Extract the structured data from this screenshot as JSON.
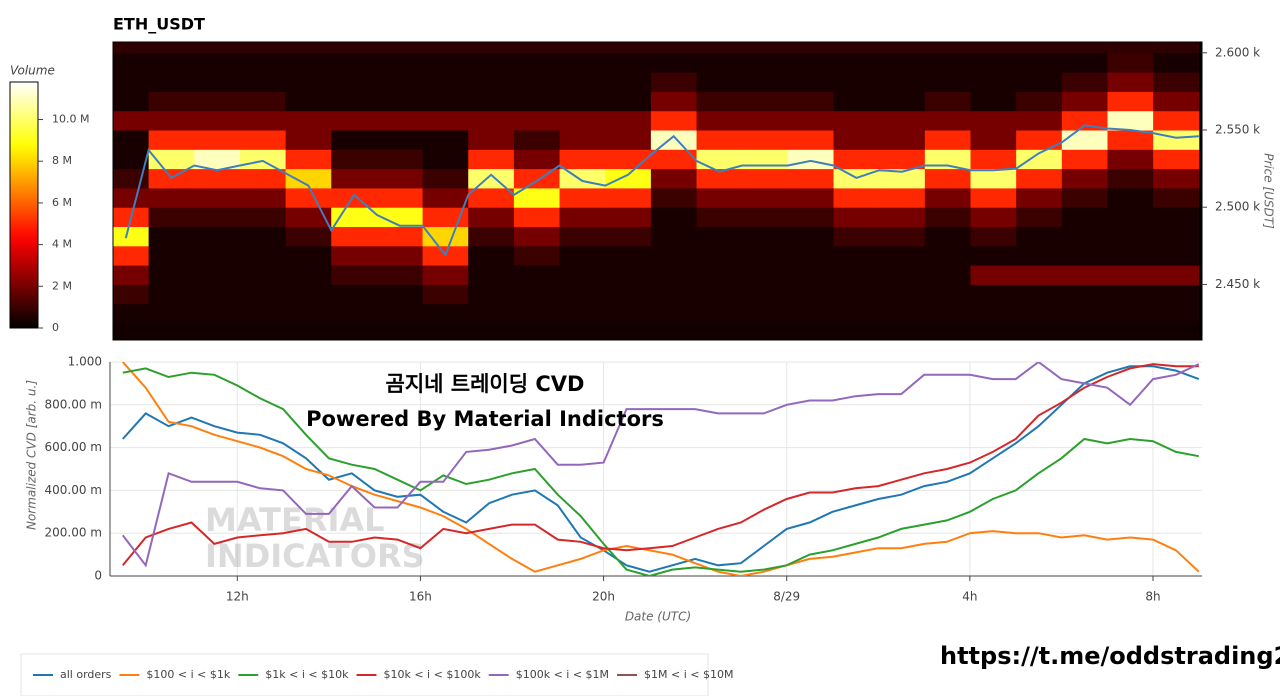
{
  "chart_data": [
    {
      "type": "heatmap",
      "title": "ETH_USDT",
      "y_label": "Price [USDT]",
      "colorbar_label": "Volume",
      "xlim": [
        9.22,
        33.07
      ],
      "ylim": [
        2414,
        2607
      ],
      "yticks": [
        {
          "value": 2450,
          "label": "2.450 k"
        },
        {
          "value": 2500,
          "label": "2.500 k"
        },
        {
          "value": 2550,
          "label": "2.550 k"
        },
        {
          "value": 2600,
          "label": "2.600 k"
        }
      ],
      "zlim": [
        0,
        11800000
      ],
      "zticks": [
        0,
        {
          "value": 2000000,
          "label": "2 M"
        },
        {
          "value": 4000000,
          "label": "4 M"
        },
        {
          "value": 6000000,
          "label": "6 M"
        },
        {
          "value": 8000000,
          "label": "8 M"
        },
        {
          "value": 10000000,
          "label": "10.0 M"
        }
      ],
      "x_bins": [
        9,
        10,
        11,
        12,
        13,
        14,
        15,
        16,
        17,
        18,
        19,
        20,
        21,
        22,
        23,
        24,
        25,
        26,
        27,
        28,
        29,
        30,
        31,
        32,
        33
      ],
      "y_bins": [
        2412.5,
        2425,
        2437.5,
        2450,
        2462.5,
        2475,
        2487.5,
        2500,
        2512.5,
        2525,
        2537.5,
        2550,
        2562.5,
        2575,
        2587.5,
        2600,
        2612.5
      ],
      "z": [
        [
          300000.0,
          300000.0,
          300000.0,
          300000.0,
          300000.0,
          300000.0,
          300000.0,
          300000.0,
          300000.0,
          300000.0,
          300000.0,
          300000.0,
          300000.0,
          300000.0,
          300000.0,
          300000.0,
          300000.0,
          300000.0,
          300000.0,
          300000.0,
          300000.0,
          300000.0,
          300000.0,
          300000.0
        ],
        [
          400000.0,
          400000.0,
          400000.0,
          400000.0,
          400000.0,
          400000.0,
          400000.0,
          400000.0,
          400000.0,
          400000.0,
          400000.0,
          400000.0,
          400000.0,
          400000.0,
          400000.0,
          400000.0,
          400000.0,
          400000.0,
          400000.0,
          400000.0,
          400000.0,
          400000.0,
          400000.0,
          400000.0
        ],
        [
          1000000.0,
          400000.0,
          400000.0,
          400000.0,
          400000.0,
          400000.0,
          400000.0,
          1000000.0,
          400000.0,
          400000.0,
          400000.0,
          400000.0,
          400000.0,
          400000.0,
          400000.0,
          400000.0,
          400000.0,
          400000.0,
          400000.0,
          400000.0,
          400000.0,
          400000.0,
          400000.0,
          400000.0
        ],
        [
          2000000.0,
          400000.0,
          400000.0,
          400000.0,
          400000.0,
          1000000.0,
          1000000.0,
          2000000.0,
          400000.0,
          400000.0,
          400000.0,
          400000.0,
          400000.0,
          400000.0,
          400000.0,
          400000.0,
          400000.0,
          400000.0,
          400000.0,
          2000000.0,
          2000000.0,
          2000000.0,
          2000000.0,
          2000000.0
        ],
        [
          5000000.0,
          400000.0,
          400000.0,
          400000.0,
          400000.0,
          2000000.0,
          2000000.0,
          5000000.0,
          400000.0,
          1000000.0,
          400000.0,
          400000.0,
          400000.0,
          400000.0,
          400000.0,
          400000.0,
          400000.0,
          400000.0,
          400000.0,
          400000.0,
          400000.0,
          400000.0,
          400000.0,
          400000.0
        ],
        [
          9000000.0,
          400000.0,
          400000.0,
          400000.0,
          1000000.0,
          5000000.0,
          5000000.0,
          8000000.0,
          1000000.0,
          2000000.0,
          1000000.0,
          1000000.0,
          400000.0,
          400000.0,
          400000.0,
          400000.0,
          1000000.0,
          1000000.0,
          400000.0,
          1000000.0,
          400000.0,
          400000.0,
          400000.0,
          400000.0
        ],
        [
          5000000.0,
          1000000.0,
          1000000.0,
          1000000.0,
          2000000.0,
          9000000.0,
          9000000.0,
          5000000.0,
          2000000.0,
          5000000.0,
          2000000.0,
          2000000.0,
          400000.0,
          1000000.0,
          1000000.0,
          1000000.0,
          2000000.0,
          2000000.0,
          1000000.0,
          2000000.0,
          1000000.0,
          400000.0,
          400000.0,
          400000.0
        ],
        [
          2000000.0,
          2000000.0,
          2000000.0,
          2000000.0,
          5000000.0,
          5000000.0,
          5000000.0,
          2000000.0,
          5000000.0,
          9000000.0,
          5000000.0,
          5000000.0,
          1000000.0,
          2000000.0,
          2000000.0,
          2000000.0,
          5000000.0,
          5000000.0,
          2000000.0,
          5000000.0,
          2000000.0,
          1000000.0,
          400000.0,
          1000000.0
        ],
        [
          1000000.0,
          5000000.0,
          5000000.0,
          5000000.0,
          8000000.0,
          2000000.0,
          2000000.0,
          1000000.0,
          10000000.0,
          5000000.0,
          10000000.0,
          9000000.0,
          2000000.0,
          5000000.0,
          5000000.0,
          5000000.0,
          10000000.0,
          10000000.0,
          5000000.0,
          10000000.0,
          5000000.0,
          2000000.0,
          1000000.0,
          2000000.0
        ],
        [
          400000.0,
          10000000.0,
          11000000.0,
          10000000.0,
          5000000.0,
          1000000.0,
          1000000.0,
          400000.0,
          5000000.0,
          2000000.0,
          5000000.0,
          5000000.0,
          5000000.0,
          10000000.0,
          10000000.0,
          11000000.0,
          5000000.0,
          5000000.0,
          10000000.0,
          5000000.0,
          10000000.0,
          5000000.0,
          2000000.0,
          5000000.0
        ],
        [
          400000.0,
          5000000.0,
          5000000.0,
          5000000.0,
          2000000.0,
          400000.0,
          400000.0,
          400000.0,
          2000000.0,
          1000000.0,
          2000000.0,
          2000000.0,
          11000000.0,
          5000000.0,
          5000000.0,
          5000000.0,
          2000000.0,
          2000000.0,
          5000000.0,
          2000000.0,
          5000000.0,
          11000000.0,
          5000000.0,
          10000000.0
        ],
        [
          2000000.0,
          2000000.0,
          2000000.0,
          2000000.0,
          2000000.0,
          2000000.0,
          2000000.0,
          2000000.0,
          2000000.0,
          2000000.0,
          2000000.0,
          2000000.0,
          5000000.0,
          2000000.0,
          2000000.0,
          2000000.0,
          2000000.0,
          2000000.0,
          2000000.0,
          2000000.0,
          2000000.0,
          5000000.0,
          11000000.0,
          5000000.0
        ],
        [
          400000.0,
          1000000.0,
          1000000.0,
          1000000.0,
          400000.0,
          400000.0,
          400000.0,
          400000.0,
          400000.0,
          400000.0,
          400000.0,
          400000.0,
          2000000.0,
          1000000.0,
          1000000.0,
          1000000.0,
          400000.0,
          400000.0,
          1000000.0,
          400000.0,
          1000000.0,
          2000000.0,
          5000000.0,
          2000000.0
        ],
        [
          400000.0,
          400000.0,
          400000.0,
          400000.0,
          400000.0,
          400000.0,
          400000.0,
          400000.0,
          400000.0,
          400000.0,
          400000.0,
          400000.0,
          1000000.0,
          400000.0,
          400000.0,
          400000.0,
          400000.0,
          400000.0,
          400000.0,
          400000.0,
          400000.0,
          1000000.0,
          2000000.0,
          1000000.0
        ],
        [
          400000.0,
          400000.0,
          400000.0,
          400000.0,
          400000.0,
          400000.0,
          400000.0,
          400000.0,
          400000.0,
          400000.0,
          400000.0,
          400000.0,
          400000.0,
          400000.0,
          400000.0,
          400000.0,
          400000.0,
          400000.0,
          400000.0,
          400000.0,
          400000.0,
          400000.0,
          1000000.0,
          400000.0
        ],
        [
          800000.0,
          800000.0,
          800000.0,
          800000.0,
          800000.0,
          800000.0,
          800000.0,
          800000.0,
          800000.0,
          800000.0,
          800000.0,
          800000.0,
          800000.0,
          800000.0,
          800000.0,
          800000.0,
          800000.0,
          800000.0,
          800000.0,
          800000.0,
          800000.0,
          800000.0,
          800000.0,
          800000.0
        ]
      ],
      "x": [
        9.5,
        10,
        10.5,
        11,
        11.5,
        12,
        12.5,
        13,
        13.5,
        14,
        14.5,
        15,
        15.5,
        16,
        16.5,
        17,
        17.5,
        18,
        18.5,
        19,
        19.5,
        20,
        20.5,
        21,
        21.5,
        22,
        22.5,
        23,
        23.5,
        24,
        24.5,
        25,
        25.5,
        26,
        26.5,
        27,
        27.5,
        28,
        28.5,
        29,
        29.5,
        30,
        30.5,
        31,
        31.5,
        32,
        32.5,
        33
      ],
      "price": {
        "color": "#3d7fbf",
        "values": [
          2480,
          2537,
          2519,
          2527,
          2524,
          2527,
          2530,
          2522,
          2514,
          2485,
          2508,
          2495,
          2488,
          2488,
          2469,
          2508,
          2521,
          2508,
          2517,
          2527,
          2517,
          2514,
          2521,
          2534,
          2546,
          2530,
          2523,
          2527,
          2527,
          2527,
          2530,
          2527,
          2519,
          2524,
          2523,
          2527,
          2527,
          2524,
          2524,
          2525,
          2535,
          2542,
          2553,
          2551,
          2550,
          2548,
          2545,
          2546
        ]
      }
    },
    {
      "type": "line",
      "x_label": "Date (UTC)",
      "y_label": "Normalized CVD [arb. u.]",
      "annotations": [
        "곰지네 트레이딩 CVD",
        "Powered By Material Indictors"
      ],
      "watermark": [
        "MATERIAL",
        "INDICATORS"
      ],
      "link": "https://t.me/oddstrading2",
      "grid": true,
      "legend": "bottom-left",
      "xlim": [
        9.22,
        33.07
      ],
      "ylim": [
        0,
        1
      ],
      "xticks": [
        {
          "value": 12,
          "label": "12h"
        },
        {
          "value": 16,
          "label": "16h"
        },
        {
          "value": 20,
          "label": "20h"
        },
        {
          "value": 24,
          "label": "8/29"
        },
        {
          "value": 28,
          "label": "4h"
        },
        {
          "value": 32,
          "label": "8h"
        }
      ],
      "yticks": [
        0,
        {
          "value": 0.2,
          "label": "200.00 m"
        },
        {
          "value": 0.4,
          "label": "400.00 m"
        },
        {
          "value": 0.6,
          "label": "600.00 m"
        },
        {
          "value": 0.8,
          "label": "800.00 m"
        },
        {
          "value": 1,
          "label": "1.000"
        }
      ],
      "x": [
        9.5,
        10,
        10.5,
        11,
        11.5,
        12,
        12.5,
        13,
        13.5,
        14,
        14.5,
        15,
        15.5,
        16,
        16.5,
        17,
        17.5,
        18,
        18.5,
        19,
        19.5,
        20,
        20.5,
        21,
        21.5,
        22,
        22.5,
        23,
        23.5,
        24,
        24.5,
        25,
        25.5,
        26,
        26.5,
        27,
        27.5,
        28,
        28.5,
        29,
        29.5,
        30,
        30.5,
        31,
        31.5,
        32,
        32.5,
        33
      ],
      "series": [
        {
          "name": "all orders",
          "color": "#1f77b4",
          "values": [
            0.64,
            0.76,
            0.7,
            0.74,
            0.7,
            0.67,
            0.66,
            0.62,
            0.55,
            0.45,
            0.48,
            0.4,
            0.37,
            0.38,
            0.3,
            0.25,
            0.34,
            0.38,
            0.4,
            0.33,
            0.18,
            0.12,
            0.05,
            0.02,
            0.05,
            0.08,
            0.05,
            0.06,
            0.14,
            0.22,
            0.25,
            0.3,
            0.33,
            0.36,
            0.38,
            0.42,
            0.44,
            0.48,
            0.55,
            0.62,
            0.7,
            0.8,
            0.9,
            0.95,
            0.98,
            0.98,
            0.96,
            0.92
          ]
        },
        {
          "name": "$100 < i < $1k",
          "color": "#ff7f0e",
          "values": [
            1.0,
            0.88,
            0.72,
            0.7,
            0.66,
            0.63,
            0.6,
            0.56,
            0.5,
            0.47,
            0.42,
            0.38,
            0.35,
            0.32,
            0.28,
            0.22,
            0.15,
            0.08,
            0.02,
            0.05,
            0.08,
            0.12,
            0.14,
            0.12,
            0.1,
            0.06,
            0.02,
            0.0,
            0.02,
            0.05,
            0.08,
            0.09,
            0.11,
            0.13,
            0.13,
            0.15,
            0.16,
            0.2,
            0.21,
            0.2,
            0.2,
            0.18,
            0.19,
            0.17,
            0.18,
            0.17,
            0.12,
            0.02
          ]
        },
        {
          "name": "$1k < i < $10k",
          "color": "#2ca02c",
          "values": [
            0.95,
            0.97,
            0.93,
            0.95,
            0.94,
            0.89,
            0.83,
            0.78,
            0.66,
            0.55,
            0.52,
            0.5,
            0.45,
            0.4,
            0.47,
            0.43,
            0.45,
            0.48,
            0.5,
            0.38,
            0.28,
            0.15,
            0.03,
            0.0,
            0.03,
            0.04,
            0.03,
            0.02,
            0.03,
            0.05,
            0.1,
            0.12,
            0.15,
            0.18,
            0.22,
            0.24,
            0.26,
            0.3,
            0.36,
            0.4,
            0.48,
            0.55,
            0.64,
            0.62,
            0.64,
            0.63,
            0.58,
            0.56
          ]
        },
        {
          "name": "$10k < i < $100k",
          "color": "#d62728",
          "values": [
            0.05,
            0.18,
            0.22,
            0.25,
            0.15,
            0.18,
            0.19,
            0.2,
            0.22,
            0.16,
            0.16,
            0.18,
            0.17,
            0.13,
            0.22,
            0.2,
            0.22,
            0.24,
            0.24,
            0.17,
            0.16,
            0.13,
            0.12,
            0.13,
            0.14,
            0.18,
            0.22,
            0.25,
            0.31,
            0.36,
            0.39,
            0.39,
            0.41,
            0.42,
            0.45,
            0.48,
            0.5,
            0.53,
            0.58,
            0.64,
            0.75,
            0.81,
            0.88,
            0.93,
            0.97,
            0.99,
            0.98,
            0.98
          ]
        },
        {
          "name": "$100k < i < $1M",
          "color": "#9467bd",
          "values": [
            0.19,
            0.05,
            0.48,
            0.44,
            0.44,
            0.44,
            0.41,
            0.4,
            0.29,
            0.29,
            0.42,
            0.32,
            0.32,
            0.44,
            0.44,
            0.58,
            0.59,
            0.61,
            0.64,
            0.52,
            0.52,
            0.53,
            0.78,
            0.78,
            0.78,
            0.78,
            0.76,
            0.76,
            0.76,
            0.8,
            0.82,
            0.82,
            0.84,
            0.85,
            0.85,
            0.94,
            0.94,
            0.94,
            0.92,
            0.92,
            1.0,
            0.92,
            0.9,
            0.88,
            0.8,
            0.92,
            0.94,
            0.99
          ]
        },
        {
          "name": "$1M < i < $10M",
          "color": "#8c564b",
          "values": [
            null,
            null,
            null,
            null,
            null,
            null,
            null,
            null,
            null,
            null,
            null,
            null,
            null,
            null,
            null,
            null,
            null,
            null,
            null,
            null,
            null,
            null,
            null,
            null,
            null,
            null,
            null,
            null,
            null,
            null,
            null,
            null,
            null,
            null,
            null,
            null,
            null,
            null,
            null,
            null,
            null,
            null,
            null,
            null,
            null,
            null,
            null,
            null
          ]
        }
      ]
    }
  ]
}
